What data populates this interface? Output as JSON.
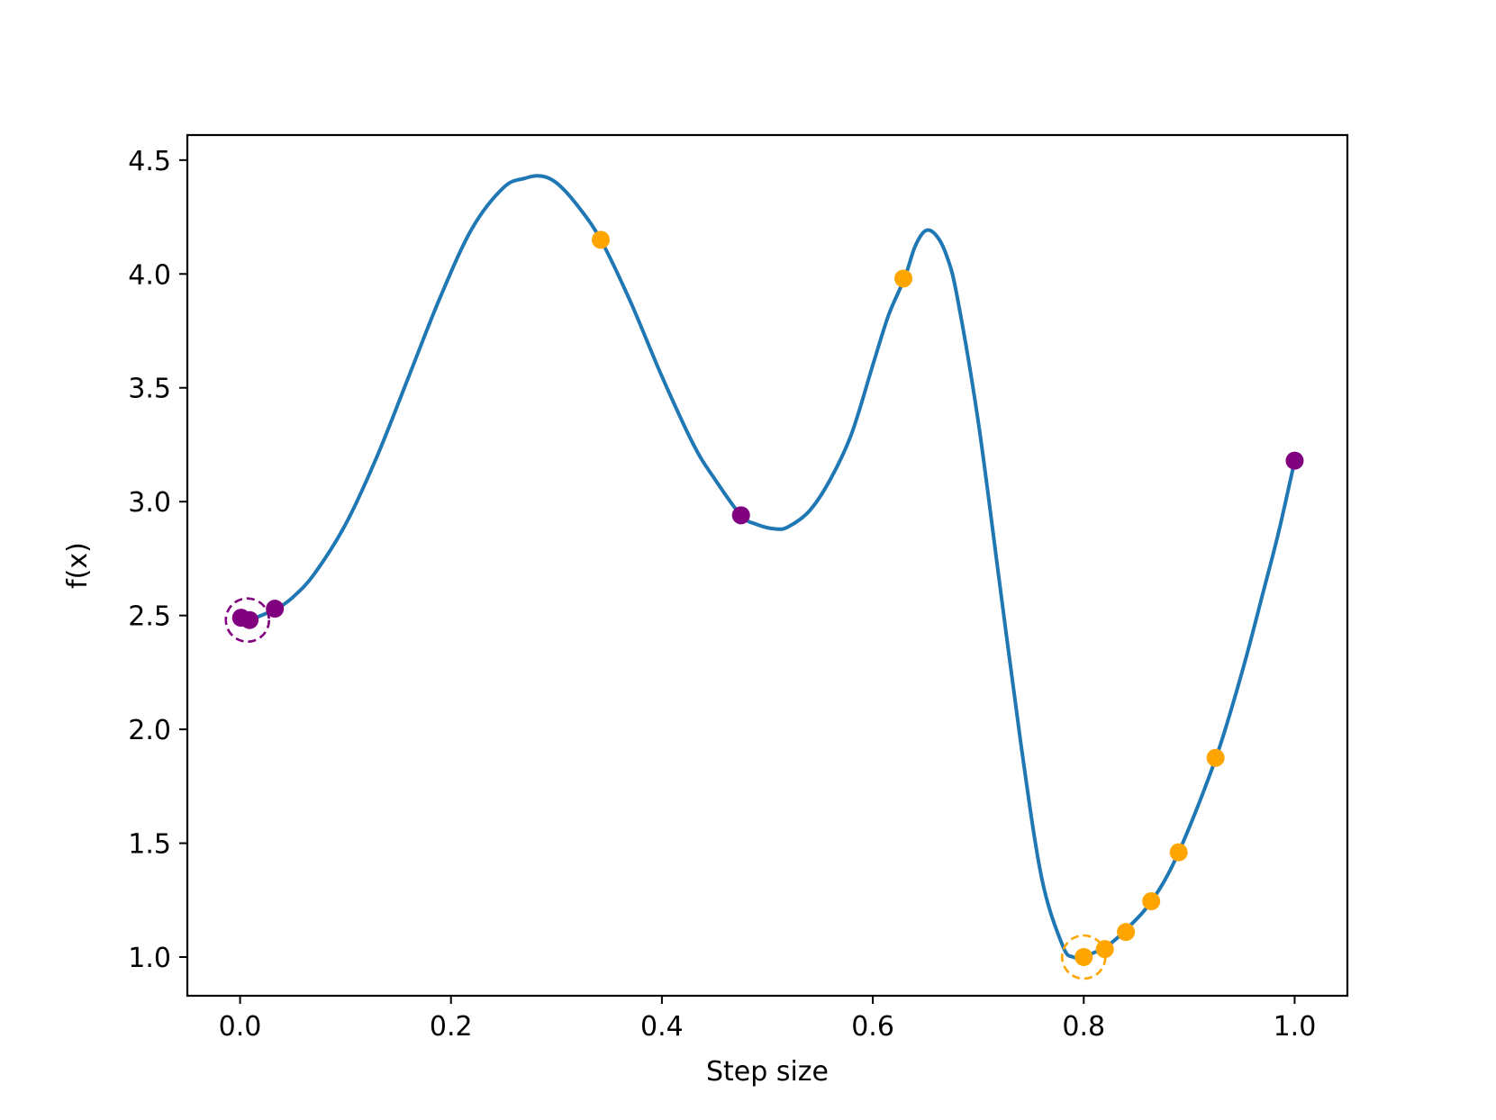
{
  "chart_data": {
    "type": "line",
    "xlabel": "Step size",
    "ylabel": "f(x)",
    "xlim": [
      -0.05,
      1.05
    ],
    "ylim": [
      0.83,
      4.61
    ],
    "xticks": [
      "0.0",
      "0.2",
      "0.4",
      "0.6",
      "0.8",
      "1.0"
    ],
    "yticks": [
      "1.0",
      "1.5",
      "2.0",
      "2.5",
      "3.0",
      "3.5",
      "4.0",
      "4.5"
    ],
    "grid": false,
    "line_color": "#1f77b4",
    "curve": {
      "x": [
        0.0,
        0.01,
        0.02,
        0.035,
        0.05,
        0.07,
        0.1,
        0.13,
        0.16,
        0.19,
        0.22,
        0.25,
        0.27,
        0.285,
        0.3,
        0.32,
        0.342,
        0.37,
        0.4,
        0.43,
        0.45,
        0.475,
        0.49,
        0.508,
        0.52,
        0.54,
        0.56,
        0.58,
        0.6,
        0.615,
        0.63,
        0.64,
        0.65,
        0.66,
        0.67,
        0.68,
        0.7,
        0.72,
        0.74,
        0.76,
        0.78,
        0.79,
        0.8,
        0.81,
        0.82,
        0.84,
        0.865,
        0.89,
        0.925,
        0.95,
        0.97,
        0.985,
        1.0
      ],
      "y": [
        2.47,
        2.48,
        2.5,
        2.53,
        2.58,
        2.68,
        2.9,
        3.2,
        3.55,
        3.9,
        4.2,
        4.38,
        4.42,
        4.43,
        4.4,
        4.3,
        4.15,
        3.88,
        3.55,
        3.25,
        3.1,
        2.94,
        2.9,
        2.88,
        2.89,
        2.96,
        3.1,
        3.3,
        3.6,
        3.82,
        3.98,
        4.12,
        4.19,
        4.17,
        4.08,
        3.9,
        3.35,
        2.65,
        1.95,
        1.35,
        1.05,
        1.0,
        1.0,
        1.02,
        1.04,
        1.12,
        1.25,
        1.46,
        1.87,
        2.25,
        2.6,
        2.87,
        3.18
      ]
    },
    "points": [
      {
        "x": 0.001,
        "y": 2.49,
        "color": "#800080"
      },
      {
        "x": 0.009,
        "y": 2.48,
        "color": "#800080"
      },
      {
        "x": 0.033,
        "y": 2.53,
        "color": "#800080"
      },
      {
        "x": 0.342,
        "y": 4.15,
        "color": "#ffa500"
      },
      {
        "x": 0.475,
        "y": 2.94,
        "color": "#800080"
      },
      {
        "x": 0.629,
        "y": 3.98,
        "color": "#ffa500"
      },
      {
        "x": 0.8,
        "y": 1.0,
        "color": "#ffa500"
      },
      {
        "x": 0.82,
        "y": 1.035,
        "color": "#ffa500"
      },
      {
        "x": 0.84,
        "y": 1.11,
        "color": "#ffa500"
      },
      {
        "x": 0.864,
        "y": 1.245,
        "color": "#ffa500"
      },
      {
        "x": 0.89,
        "y": 1.46,
        "color": "#ffa500"
      },
      {
        "x": 0.925,
        "y": 1.875,
        "color": "#ffa500"
      },
      {
        "x": 1.0,
        "y": 3.18,
        "color": "#800080"
      }
    ],
    "highlights": [
      {
        "x": 0.007,
        "y": 2.48,
        "color": "#800080"
      },
      {
        "x": 0.8,
        "y": 1.0,
        "color": "#ffa500"
      }
    ]
  }
}
